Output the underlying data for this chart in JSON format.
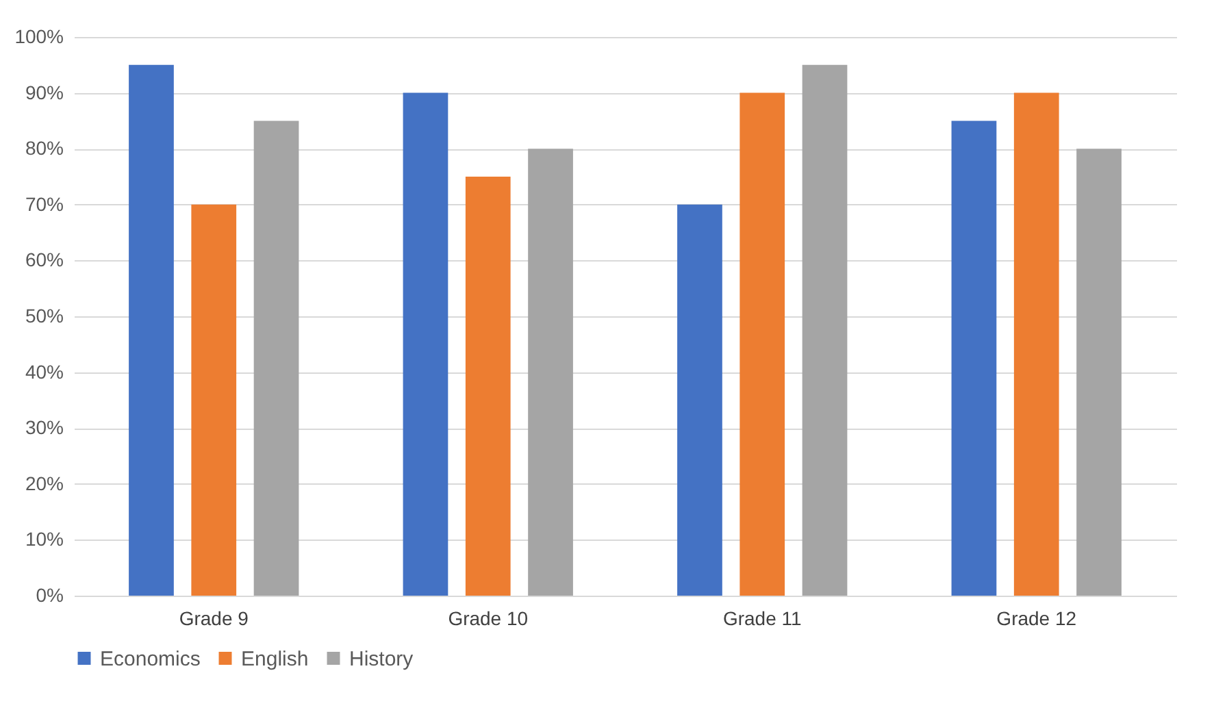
{
  "chart_data": {
    "type": "bar",
    "categories": [
      "Grade 9",
      "Grade 10",
      "Grade 11",
      "Grade 12"
    ],
    "series": [
      {
        "name": "Economics",
        "color": "#4472c4",
        "values": [
          95,
          90,
          70,
          85
        ]
      },
      {
        "name": "English",
        "color": "#ed7d31",
        "values": [
          70,
          75,
          90,
          90
        ]
      },
      {
        "name": "History",
        "color": "#a5a5a5",
        "values": [
          85,
          80,
          95,
          80
        ]
      }
    ],
    "ylim": [
      0,
      100
    ],
    "yticks": [
      {
        "value": 0,
        "label": "0%"
      },
      {
        "value": 10,
        "label": "10%"
      },
      {
        "value": 20,
        "label": "20%"
      },
      {
        "value": 30,
        "label": "30%"
      },
      {
        "value": 40,
        "label": "40%"
      },
      {
        "value": 50,
        "label": "50%"
      },
      {
        "value": 60,
        "label": "60%"
      },
      {
        "value": 70,
        "label": "70%"
      },
      {
        "value": 80,
        "label": "80%"
      },
      {
        "value": 90,
        "label": "90%"
      },
      {
        "value": 100,
        "label": "100%"
      }
    ],
    "grid": "y",
    "legend": "bottom"
  }
}
